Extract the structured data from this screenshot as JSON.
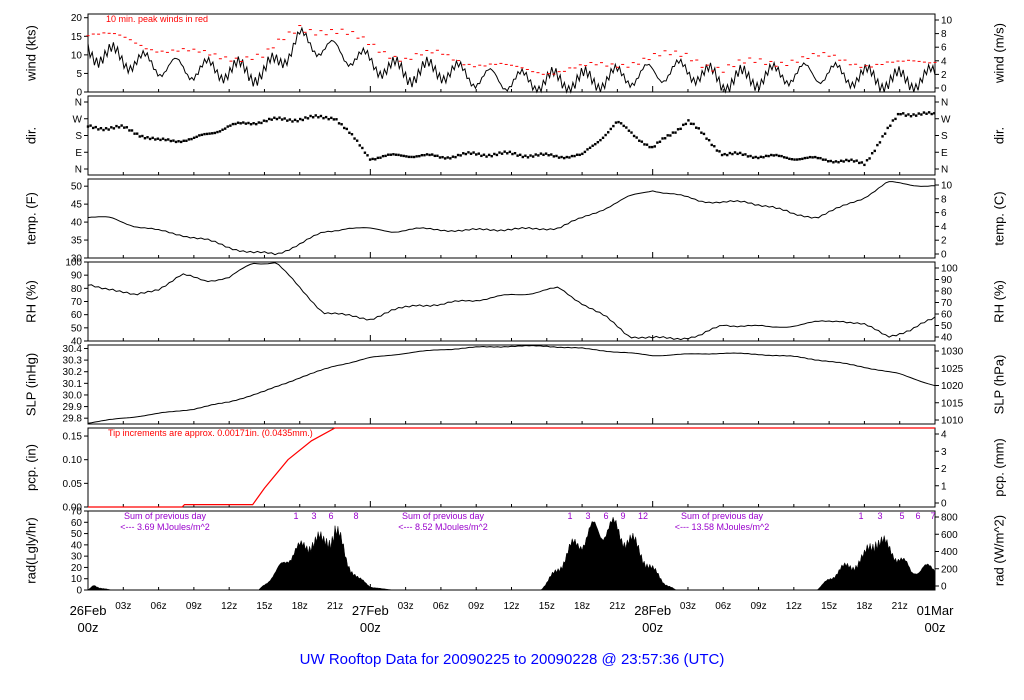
{
  "footer": {
    "title": "UW Rooftop Data for 20090225  to  20090228 @ 23:57:36  (UTC)"
  },
  "colors": {
    "ink": "#000000",
    "accent": "#ff0000",
    "purple": "#9900cc",
    "blue": "#0000ff"
  },
  "time_axis": {
    "minor_labels": [
      "03z",
      "06z",
      "09z",
      "12z",
      "15z",
      "18z",
      "21z",
      "03z",
      "06z",
      "09z",
      "12z",
      "15z",
      "18z",
      "21z",
      "03z",
      "06z",
      "09z",
      "12z",
      "15z",
      "18z",
      "21z"
    ],
    "day_labels": [
      {
        "day": "26Feb",
        "hour": "00z"
      },
      {
        "day": "27Feb",
        "hour": "00z"
      },
      {
        "day": "28Feb",
        "hour": "00z"
      },
      {
        "day": "01Mar",
        "hour": "00z"
      }
    ]
  },
  "chart_data": [
    {
      "type": "line",
      "name": "wind",
      "ylabel": "wind (kts)",
      "ylabel_right": "wind (m/s)",
      "ylim": [
        0,
        21
      ],
      "yticks": [
        0,
        5,
        10,
        15,
        20
      ],
      "right_ticks": [
        0,
        2,
        4,
        6,
        8,
        10
      ],
      "annotation": "10 min. peak winds in red",
      "x_hours": [
        0,
        3,
        6,
        9,
        12,
        15,
        18,
        21,
        24,
        27,
        30,
        33,
        36,
        39,
        42,
        45,
        48,
        51,
        54,
        57,
        60,
        63,
        66,
        69,
        72
      ],
      "series": [
        {
          "values": [
            11,
            9,
            7,
            6,
            6,
            5,
            14,
            11,
            8,
            5,
            6,
            4,
            3,
            3,
            3,
            4,
            5,
            6,
            3,
            4,
            5,
            5,
            4,
            3,
            4
          ]
        },
        {
          "values": [
            16,
            14,
            12,
            10,
            10,
            9,
            18,
            16,
            13,
            9,
            10,
            8,
            6,
            6,
            6,
            8,
            9,
            10,
            6,
            8,
            9,
            9,
            8,
            7,
            9
          ]
        }
      ]
    },
    {
      "type": "scatter",
      "name": "dir",
      "ylabel": "dir.",
      "ylabel_right": "dir.",
      "y_tick_labels": [
        "N",
        "E",
        "S",
        "W",
        "N"
      ],
      "ylim": [
        0,
        360
      ],
      "x_hours": [
        0,
        3,
        6,
        9,
        12,
        15,
        18,
        21,
        24,
        27,
        30,
        33,
        36,
        39,
        42,
        45,
        48,
        51,
        54,
        57,
        60,
        63,
        66,
        69,
        72
      ],
      "values": [
        225,
        220,
        150,
        160,
        230,
        260,
        270,
        280,
        60,
        75,
        65,
        80,
        80,
        70,
        70,
        250,
        110,
        260,
        80,
        70,
        60,
        50,
        30,
        300,
        290
      ]
    },
    {
      "type": "line",
      "name": "temp",
      "ylabel": "temp. (F)",
      "ylabel_right": "temp. (C)",
      "ylim": [
        30,
        52
      ],
      "yticks": [
        30,
        35,
        40,
        45,
        50
      ],
      "right_ticks": [
        0,
        2,
        4,
        6,
        8,
        10
      ],
      "x_hours": [
        0,
        2,
        4,
        6,
        8,
        10,
        12,
        14,
        16,
        18,
        20,
        22,
        24,
        26,
        28,
        30,
        32,
        34,
        36,
        38,
        40,
        42,
        44,
        46,
        48,
        50,
        52,
        54,
        56,
        58,
        60,
        62,
        64,
        66,
        68,
        70,
        72
      ],
      "values": [
        41.5,
        41,
        39,
        37.5,
        36.5,
        35,
        33,
        31.5,
        31,
        34,
        37,
        38.5,
        38,
        37.5,
        38,
        38,
        37.5,
        38,
        38,
        38,
        38.5,
        41,
        44,
        47,
        49,
        47.5,
        46,
        45.5,
        45.5,
        44.5,
        42,
        41.5,
        44,
        47,
        51,
        50.5,
        50
      ]
    },
    {
      "type": "line",
      "name": "rh",
      "ylabel": "RH (%)",
      "ylabel_right": "RH (%)",
      "ylim": [
        40,
        100
      ],
      "yticks": [
        40,
        50,
        60,
        70,
        80,
        90,
        100
      ],
      "right_ticks": [
        40,
        50,
        60,
        70,
        80,
        90,
        100
      ],
      "x_hours": [
        0,
        2,
        4,
        6,
        8,
        10,
        12,
        14,
        16,
        18,
        20,
        22,
        24,
        26,
        28,
        30,
        32,
        34,
        36,
        38,
        40,
        42,
        44,
        46,
        48,
        50,
        52,
        54,
        56,
        58,
        60,
        62,
        64,
        66,
        68,
        70,
        72
      ],
      "values": [
        82,
        80,
        74,
        80,
        90,
        86,
        88,
        99,
        100,
        80,
        62,
        59,
        57,
        63,
        68,
        67,
        71,
        72,
        75,
        77,
        80,
        69,
        58,
        44,
        42,
        42,
        44,
        52,
        52,
        50,
        52,
        54,
        56,
        52,
        44,
        48,
        58
      ]
    },
    {
      "type": "line",
      "name": "slp",
      "ylabel": "SLP (inHg)",
      "ylabel_right": "SLP (hPa)",
      "ylim": [
        29.75,
        30.43
      ],
      "yticks": [
        29.8,
        29.9,
        30.0,
        30.1,
        30.2,
        30.3,
        30.4
      ],
      "right_ticks": [
        1010,
        1015,
        1020,
        1025,
        1030
      ],
      "x_hours": [
        0,
        3,
        6,
        9,
        12,
        15,
        18,
        21,
        24,
        27,
        30,
        33,
        36,
        39,
        42,
        45,
        48,
        51,
        54,
        57,
        60,
        63,
        66,
        69,
        72
      ],
      "values": [
        29.76,
        29.8,
        29.84,
        29.88,
        29.94,
        30.03,
        30.15,
        30.25,
        30.32,
        30.36,
        30.39,
        30.41,
        30.42,
        30.42,
        30.4,
        30.37,
        30.34,
        30.35,
        30.36,
        30.35,
        30.33,
        30.29,
        30.24,
        30.18,
        30.08
      ]
    },
    {
      "type": "line",
      "name": "pcp",
      "ylabel": "pcp. (in)",
      "ylabel_right": "pcp. (mm)",
      "ylim": [
        0,
        0.167
      ],
      "yticks": [
        0.0,
        0.05,
        0.1,
        0.15
      ],
      "right_ticks": [
        0,
        1,
        2,
        3,
        4
      ],
      "annotation": "Tip increments are approx. 0.00171in. (0.0435mm.)",
      "x_hours": [
        0,
        8,
        8.2,
        14,
        15,
        17,
        19,
        21,
        21.5,
        72
      ],
      "values": [
        0,
        0,
        0.005,
        0.005,
        0.04,
        0.1,
        0.14,
        0.167,
        0.167,
        0.167
      ]
    },
    {
      "type": "area",
      "name": "rad",
      "ylabel": "rad(Lgly/hr)",
      "ylabel_right": "rad (W/m^2)",
      "ylim": [
        0,
        70
      ],
      "yticks": [
        0,
        10,
        20,
        30,
        40,
        50,
        60,
        70
      ],
      "right_ticks": [
        0,
        200,
        400,
        600,
        800
      ],
      "x_hours": [
        0,
        0.5,
        1,
        2,
        14.5,
        15,
        16,
        17,
        18,
        19,
        20,
        21,
        22,
        23,
        24,
        25,
        26,
        38.5,
        39,
        40,
        41,
        42,
        43,
        44,
        45,
        46,
        47,
        48,
        49,
        50,
        62,
        63,
        64,
        65,
        66,
        67,
        68,
        69,
        70,
        71,
        72
      ],
      "values": [
        0,
        4,
        2,
        0,
        0,
        5,
        15,
        30,
        35,
        45,
        40,
        55,
        25,
        10,
        3,
        1,
        0,
        0,
        6,
        20,
        35,
        45,
        52,
        55,
        52,
        45,
        32,
        18,
        6,
        0,
        0,
        10,
        18,
        22,
        28,
        48,
        35,
        30,
        15,
        20,
        18
      ],
      "day_sums": [
        {
          "label": "Sum of previous day",
          "value": "<--- 3.69 MJoules/m^2"
        },
        {
          "label": "Sum of previous day",
          "value": "<--- 8.52 MJoules/m^2"
        },
        {
          "label": "Sum of previous day",
          "value": "<--- 13.58 MJoules/m^2"
        }
      ],
      "hour_marks": [
        [
          "1",
          "3",
          "6",
          "8"
        ],
        [
          "1",
          "3",
          "6",
          "9",
          "12"
        ],
        [
          "1",
          "3",
          "5",
          "6",
          "7"
        ]
      ]
    }
  ]
}
